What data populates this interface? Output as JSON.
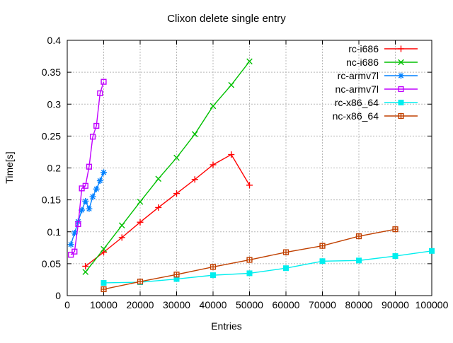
{
  "chart_data": {
    "type": "line",
    "title": "Clixon delete single entry",
    "xlabel": "Entries",
    "ylabel": "Time[s]",
    "xlim": [
      0,
      100000
    ],
    "ylim": [
      0,
      0.4
    ],
    "xticks": [
      0,
      10000,
      20000,
      30000,
      40000,
      50000,
      60000,
      70000,
      80000,
      90000,
      100000
    ],
    "xtick_labels": [
      "0",
      "10000",
      "20000",
      "30000",
      "40000",
      "50000",
      "60000",
      "70000",
      "80000",
      "90000",
      "100000"
    ],
    "yticks": [
      0,
      0.05,
      0.1,
      0.15,
      0.2,
      0.25,
      0.3,
      0.35,
      0.4
    ],
    "ytick_labels": [
      "0",
      "0.05",
      "0.1",
      "0.15",
      "0.2",
      "0.25",
      "0.3",
      "0.35",
      "0.4"
    ],
    "grid": true,
    "legend_position": "top-right-inside",
    "background_color": "#ffffff",
    "grid_color": "#b8b8b8",
    "axis_color": "#000000",
    "series": [
      {
        "name": "rc-i686",
        "color": "#ff0000",
        "marker": "plus",
        "x": [
          5000,
          10000,
          15000,
          20000,
          25000,
          30000,
          35000,
          40000,
          45000,
          50000
        ],
        "y": [
          0.046,
          0.068,
          0.091,
          0.115,
          0.138,
          0.16,
          0.182,
          0.205,
          0.221,
          0.173
        ]
      },
      {
        "name": "nc-i686",
        "color": "#00c000",
        "marker": "cross",
        "x": [
          5000,
          10000,
          15000,
          20000,
          25000,
          30000,
          35000,
          40000,
          45000,
          50000
        ],
        "y": [
          0.037,
          0.073,
          0.11,
          0.147,
          0.183,
          0.216,
          0.253,
          0.297,
          0.33,
          0.367
        ]
      },
      {
        "name": "rc-armv7l",
        "color": "#0080ff",
        "marker": "asterisk",
        "x": [
          1000,
          2000,
          3000,
          4000,
          5000,
          6000,
          7000,
          8000,
          9000,
          10000
        ],
        "y": [
          0.08,
          0.098,
          0.116,
          0.134,
          0.148,
          0.136,
          0.155,
          0.167,
          0.18,
          0.193
        ]
      },
      {
        "name": "nc-armv7l",
        "color": "#c000ff",
        "marker": "square-open",
        "x": [
          1000,
          2000,
          3000,
          4000,
          5000,
          6000,
          7000,
          8000,
          9000,
          10000
        ],
        "y": [
          0.064,
          0.069,
          0.112,
          0.168,
          0.172,
          0.202,
          0.249,
          0.266,
          0.317,
          0.335
        ]
      },
      {
        "name": "rc-x86_64",
        "color": "#00eeee",
        "marker": "square-filled",
        "x": [
          10000,
          20000,
          30000,
          40000,
          50000,
          60000,
          70000,
          80000,
          90000,
          100000
        ],
        "y": [
          0.02,
          0.021,
          0.026,
          0.032,
          0.035,
          0.043,
          0.054,
          0.055,
          0.062,
          0.07
        ]
      },
      {
        "name": "nc-x86_64",
        "color": "#c04000",
        "marker": "box-plus",
        "x": [
          10000,
          20000,
          30000,
          40000,
          50000,
          60000,
          70000,
          80000,
          90000
        ],
        "y": [
          0.01,
          0.022,
          0.033,
          0.045,
          0.056,
          0.068,
          0.078,
          0.093,
          0.104
        ]
      }
    ]
  }
}
